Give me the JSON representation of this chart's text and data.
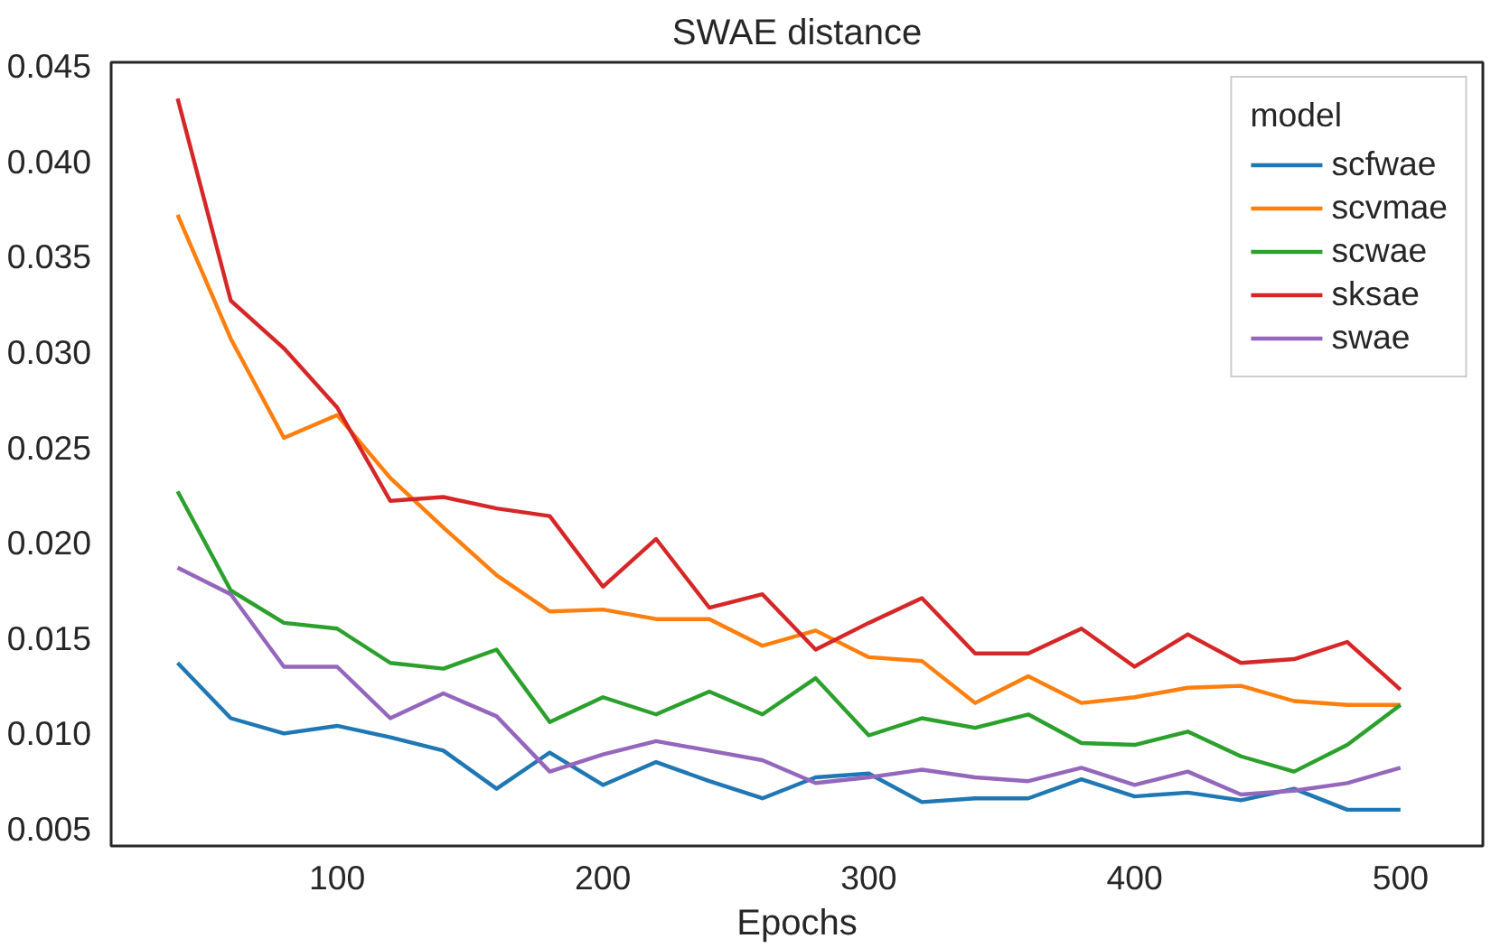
{
  "chart_data": {
    "type": "line",
    "title": "SWAE distance",
    "xlabel": "Epochs",
    "legend_title": "model",
    "legend": "top right",
    "grid": false,
    "x": [
      40,
      60,
      80,
      100,
      120,
      140,
      160,
      180,
      200,
      220,
      240,
      260,
      280,
      300,
      320,
      340,
      360,
      380,
      400,
      420,
      440,
      460,
      480,
      500
    ],
    "xlim": [
      15,
      531
    ],
    "xticks": [
      100,
      200,
      300,
      400,
      500
    ],
    "ylim": [
      0.0041,
      0.0452
    ],
    "yticks": [
      {
        "value": 0.005,
        "label": "0.005"
      },
      {
        "value": 0.01,
        "label": "0.010"
      },
      {
        "value": 0.015,
        "label": "0.015"
      },
      {
        "value": 0.02,
        "label": "0.020"
      },
      {
        "value": 0.025,
        "label": "0.025"
      },
      {
        "value": 0.03,
        "label": "0.030"
      },
      {
        "value": 0.035,
        "label": "0.035"
      },
      {
        "value": 0.04,
        "label": "0.040"
      },
      {
        "value": 0.045,
        "label": "0.045"
      }
    ],
    "series": [
      {
        "name": "scfwae",
        "color": "#1f77b4",
        "values": [
          0.0137,
          0.0108,
          0.01,
          0.0104,
          0.0098,
          0.0091,
          0.0071,
          0.009,
          0.0073,
          0.0085,
          0.0075,
          0.0066,
          0.0077,
          0.0079,
          0.0064,
          0.0066,
          0.0066,
          0.0076,
          0.0067,
          0.0069,
          0.0065,
          0.0071,
          0.006,
          0.006
        ]
      },
      {
        "name": "scvmae",
        "color": "#ff7f0e",
        "values": [
          0.0372,
          0.0307,
          0.0255,
          0.0267,
          0.0234,
          0.0208,
          0.0183,
          0.0164,
          0.0165,
          0.016,
          0.016,
          0.0146,
          0.0154,
          0.014,
          0.0138,
          0.0116,
          0.013,
          0.0116,
          0.0119,
          0.0124,
          0.0125,
          0.0117,
          0.0115,
          0.0115
        ]
      },
      {
        "name": "scwae",
        "color": "#2ca02c",
        "values": [
          0.0227,
          0.0175,
          0.0158,
          0.0155,
          0.0137,
          0.0134,
          0.0144,
          0.0106,
          0.0119,
          0.011,
          0.0122,
          0.011,
          0.0129,
          0.0099,
          0.0108,
          0.0103,
          0.011,
          0.0095,
          0.0094,
          0.0101,
          0.0088,
          0.008,
          0.0094,
          0.0115
        ]
      },
      {
        "name": "sksae",
        "color": "#d62728",
        "values": [
          0.0433,
          0.0327,
          0.0302,
          0.0271,
          0.0222,
          0.0224,
          0.0218,
          0.0214,
          0.0177,
          0.0202,
          0.0166,
          0.0173,
          0.0144,
          0.0158,
          0.0171,
          0.0142,
          0.0142,
          0.0155,
          0.0135,
          0.0152,
          0.0137,
          0.0139,
          0.0148,
          0.0123
        ]
      },
      {
        "name": "swae",
        "color": "#9467bd",
        "values": [
          0.0187,
          0.0173,
          0.0135,
          0.0135,
          0.0108,
          0.0121,
          0.0109,
          0.008,
          0.0089,
          0.0096,
          0.0091,
          0.0086,
          0.0074,
          0.0077,
          0.0081,
          0.0077,
          0.0075,
          0.0082,
          0.0073,
          0.008,
          0.0068,
          0.007,
          0.0074,
          0.0082
        ]
      }
    ]
  }
}
